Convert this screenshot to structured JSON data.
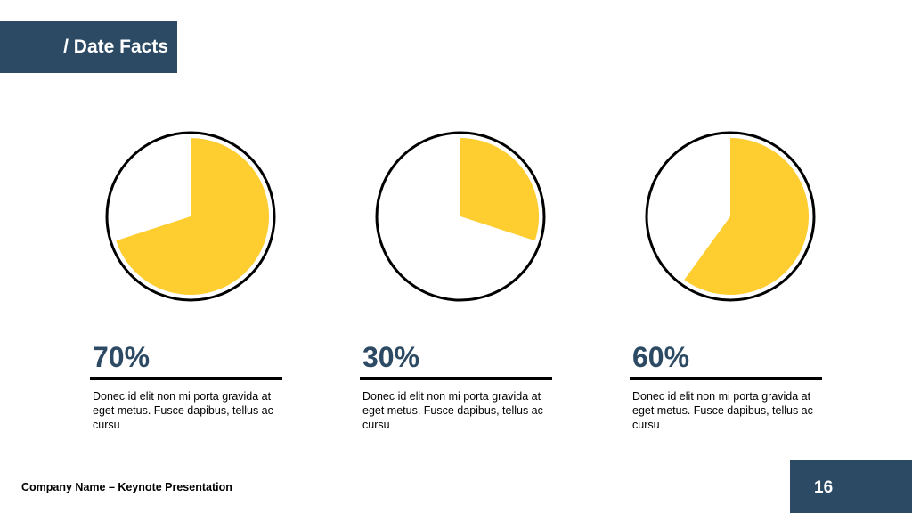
{
  "header": {
    "title": "/ Date Facts"
  },
  "chart_data": [
    {
      "type": "pie",
      "values": [
        70
      ],
      "value_labels": [
        "70%"
      ],
      "color": "#fecd30",
      "description": "Donec id elit non mi porta gravida at eget metus. Fusce dapibus, tellus ac cursu"
    },
    {
      "type": "pie",
      "values": [
        30
      ],
      "value_labels": [
        "30%"
      ],
      "color": "#fecd30",
      "description": "Donec id elit non mi porta gravida at eget metus. Fusce dapibus, tellus ac cursu"
    },
    {
      "type": "pie",
      "values": [
        60
      ],
      "value_labels": [
        "60%"
      ],
      "color": "#fecd30",
      "description": "Donec id elit non mi porta gravida at eget metus. Fusce dapibus, tellus ac cursu"
    }
  ],
  "footer": {
    "company": "Company Name – Keynote Presentation",
    "page_number": "16"
  }
}
